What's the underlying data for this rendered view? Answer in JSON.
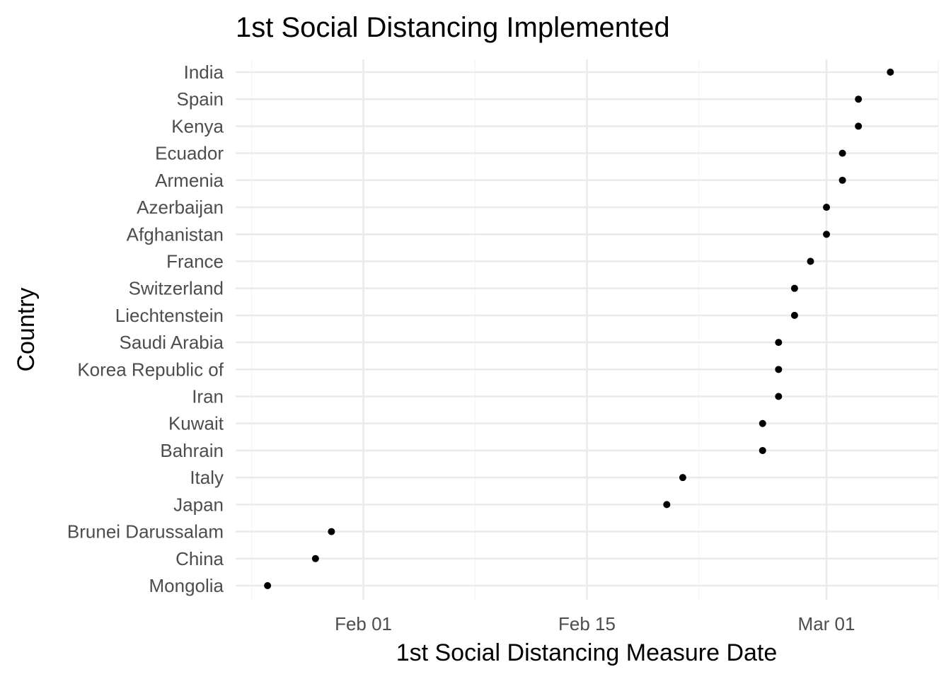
{
  "chart_data": {
    "type": "scatter",
    "title": "1st Social Distancing Implemented",
    "xlabel": "1st Social Distancing Measure Date",
    "ylabel": "Country",
    "x_type": "date",
    "xlim": [
      "2020-01-24",
      "2020-03-08"
    ],
    "x_ticks": [
      {
        "date": "2020-02-01",
        "label": "Feb 01"
      },
      {
        "date": "2020-02-15",
        "label": "Feb 15"
      },
      {
        "date": "2020-03-01",
        "label": "Mar 01"
      }
    ],
    "x_minor_ticks": [
      "2020-01-25",
      "2020-02-08",
      "2020-02-22",
      "2020-03-08"
    ],
    "grid": true,
    "categories": [
      "Mongolia",
      "China",
      "Brunei Darussalam",
      "Japan",
      "Italy",
      "Bahrain",
      "Kuwait",
      "Iran",
      "Korea Republic of",
      "Saudi Arabia",
      "Liechtenstein",
      "Switzerland",
      "France",
      "Afghanistan",
      "Azerbaijan",
      "Armenia",
      "Ecuador",
      "Kenya",
      "Spain",
      "India"
    ],
    "points": [
      {
        "y": "Mongolia",
        "x": "2020-01-26"
      },
      {
        "y": "China",
        "x": "2020-01-29"
      },
      {
        "y": "Brunei Darussalam",
        "x": "2020-01-30"
      },
      {
        "y": "Japan",
        "x": "2020-02-20"
      },
      {
        "y": "Italy",
        "x": "2020-02-21"
      },
      {
        "y": "Bahrain",
        "x": "2020-02-26"
      },
      {
        "y": "Kuwait",
        "x": "2020-02-26"
      },
      {
        "y": "Iran",
        "x": "2020-02-27"
      },
      {
        "y": "Korea Republic of",
        "x": "2020-02-27"
      },
      {
        "y": "Saudi Arabia",
        "x": "2020-02-27"
      },
      {
        "y": "Liechtenstein",
        "x": "2020-02-28"
      },
      {
        "y": "Switzerland",
        "x": "2020-02-28"
      },
      {
        "y": "France",
        "x": "2020-02-29"
      },
      {
        "y": "Afghanistan",
        "x": "2020-03-01"
      },
      {
        "y": "Azerbaijan",
        "x": "2020-03-01"
      },
      {
        "y": "Armenia",
        "x": "2020-03-02"
      },
      {
        "y": "Ecuador",
        "x": "2020-03-02"
      },
      {
        "y": "Kenya",
        "x": "2020-03-03"
      },
      {
        "y": "Spain",
        "x": "2020-03-03"
      },
      {
        "y": "India",
        "x": "2020-03-05"
      }
    ],
    "colors": {
      "point": "#000000",
      "grid_major": "#ebebeb",
      "grid_minor": "#f5f5f5",
      "tick_text": "#4d4d4d",
      "title_text": "#000000"
    }
  }
}
